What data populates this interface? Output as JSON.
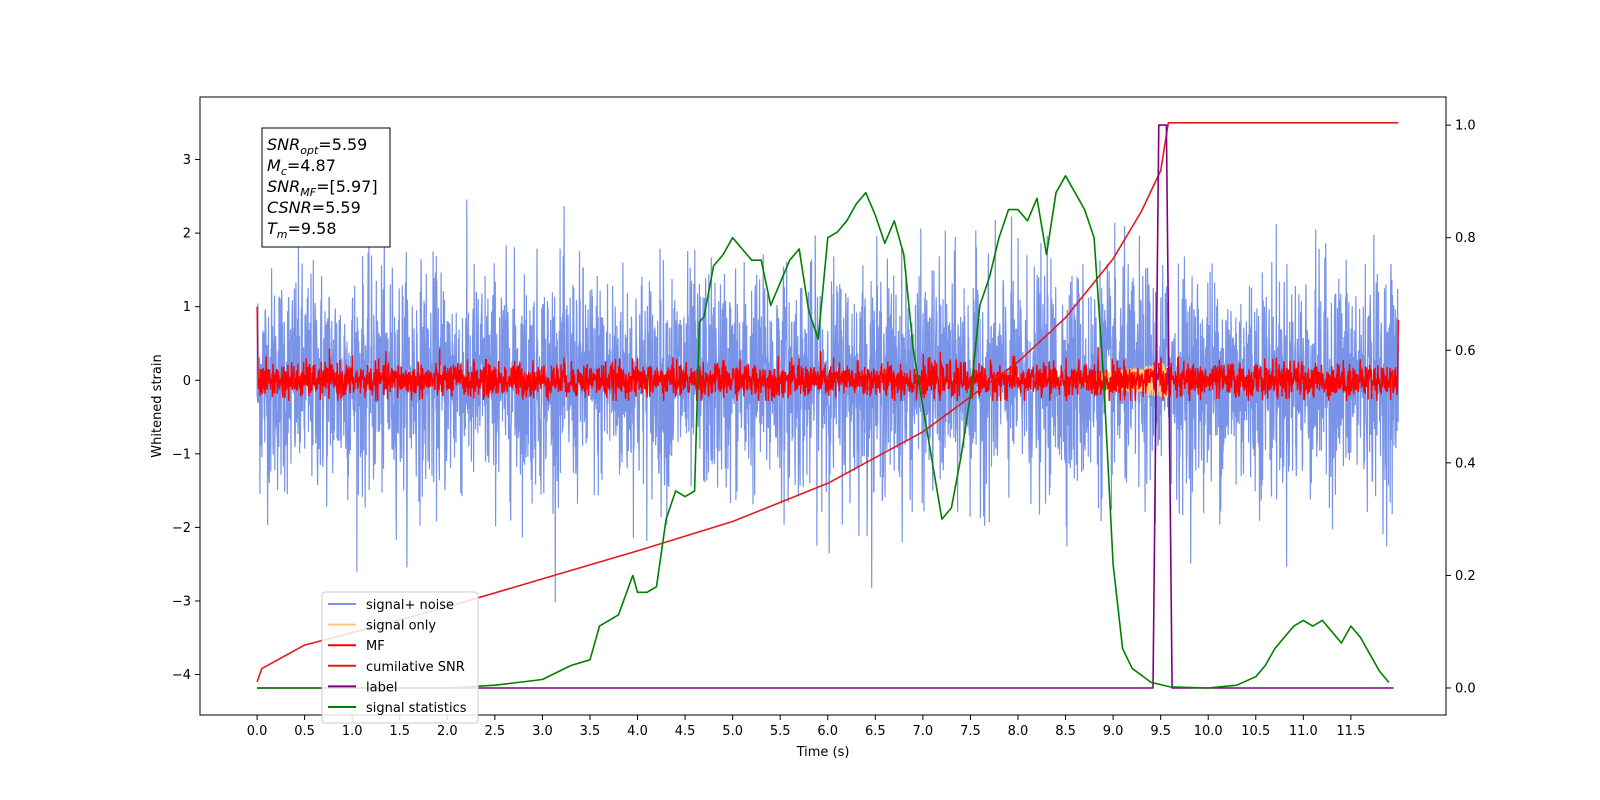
{
  "chart_data": {
    "type": "line",
    "xlabel": "Time (s)",
    "ylabel": "Whitened strain",
    "xlim": [
      -0.6,
      12.5
    ],
    "ylim": [
      -4.55,
      3.85
    ],
    "y2lim": [
      -0.048,
      1.05
    ],
    "x_ticks": [
      "0.0",
      "0.5",
      "1.0",
      "1.5",
      "2.0",
      "2.5",
      "3.0",
      "3.5",
      "4.0",
      "4.5",
      "5.0",
      "5.5",
      "6.0",
      "6.5",
      "7.0",
      "7.5",
      "8.0",
      "8.5",
      "9.0",
      "9.5",
      "10.0",
      "10.5",
      "11.0",
      "11.5"
    ],
    "y_ticks": [
      "3",
      "2",
      "1",
      "0",
      "−1",
      "−2",
      "−3",
      "−4"
    ],
    "y2_ticks": [
      "1.0",
      "0.8",
      "0.6",
      "0.4",
      "0.2",
      "0.0"
    ],
    "annotation": [
      {
        "base": "SNR",
        "sub": "opt",
        "value": "=5.59"
      },
      {
        "base": "M",
        "sub": "c",
        "value": "=4.87"
      },
      {
        "base": "SNR",
        "sub": "MF",
        "value": "=[5.97]"
      },
      {
        "base": "CSNR",
        "sub": "",
        "value": "=5.59"
      },
      {
        "base": "T",
        "sub": "m",
        "value": "=9.58"
      }
    ],
    "legend": {
      "placement": "lower-left",
      "entries": [
        {
          "label": "signal+ noise",
          "color": "#7893e8"
        },
        {
          "label": "signal only",
          "color": "#ffc77a"
        },
        {
          "label": "MF",
          "color": "#ff0000"
        },
        {
          "label": "cumilative SNR",
          "color": "#e31a1a"
        },
        {
          "label": "label",
          "color": "#800080"
        },
        {
          "label": "signal statistics",
          "color": "#008000"
        }
      ]
    },
    "series": [
      {
        "name": "signal+ noise",
        "axis": "left",
        "color": "#7893e8",
        "x_range": [
          0,
          12
        ],
        "mean": 0,
        "std": 0.75
      },
      {
        "name": "MF",
        "axis": "left",
        "color": "#ff0000",
        "x_range": [
          0,
          12
        ],
        "mean": 0,
        "std": 0.12,
        "edge_values": {
          "start": 1.0,
          "end": 0.82
        }
      },
      {
        "name": "cumilative SNR",
        "axis": "left",
        "color": "#e31a1a",
        "x": [
          0.0,
          0.05,
          0.5,
          1.0,
          2.0,
          3.0,
          4.0,
          5.0,
          6.0,
          7.0,
          8.0,
          8.5,
          9.0,
          9.3,
          9.5,
          9.58,
          12.0
        ],
        "y": [
          -4.1,
          -3.92,
          -3.6,
          -3.43,
          -3.08,
          -2.7,
          -2.32,
          -1.92,
          -1.4,
          -0.7,
          0.25,
          0.85,
          1.65,
          2.3,
          2.85,
          3.5,
          3.5
        ]
      },
      {
        "name": "label",
        "axis": "right",
        "color": "#800080",
        "x": [
          0.0,
          9.42,
          9.48,
          9.56,
          9.62,
          11.95
        ],
        "y": [
          0.0,
          0.0,
          1.0,
          1.0,
          0.0,
          0.0
        ]
      },
      {
        "name": "signal statistics",
        "axis": "right",
        "color": "#008000",
        "x": [
          0.0,
          2.0,
          2.5,
          3.0,
          3.3,
          3.5,
          3.6,
          3.8,
          3.95,
          4.0,
          4.1,
          4.2,
          4.3,
          4.4,
          4.5,
          4.6,
          4.65,
          4.7,
          4.8,
          4.9,
          5.0,
          5.1,
          5.2,
          5.3,
          5.4,
          5.5,
          5.6,
          5.7,
          5.8,
          5.9,
          6.0,
          6.1,
          6.2,
          6.3,
          6.4,
          6.5,
          6.6,
          6.7,
          6.8,
          6.9,
          7.0,
          7.1,
          7.2,
          7.3,
          7.4,
          7.5,
          7.6,
          7.7,
          7.8,
          7.9,
          8.0,
          8.1,
          8.2,
          8.3,
          8.4,
          8.5,
          8.6,
          8.7,
          8.8,
          8.9,
          9.0,
          9.1,
          9.2,
          9.4,
          9.6,
          10.0,
          10.3,
          10.5,
          10.6,
          10.7,
          10.8,
          10.9,
          11.0,
          11.1,
          11.2,
          11.3,
          11.4,
          11.5,
          11.6,
          11.7,
          11.8,
          11.9
        ],
        "y": [
          0.0,
          0.0,
          0.005,
          0.015,
          0.04,
          0.05,
          0.11,
          0.13,
          0.2,
          0.17,
          0.17,
          0.18,
          0.3,
          0.35,
          0.34,
          0.35,
          0.65,
          0.66,
          0.75,
          0.77,
          0.8,
          0.78,
          0.76,
          0.76,
          0.68,
          0.72,
          0.76,
          0.78,
          0.67,
          0.62,
          0.8,
          0.81,
          0.83,
          0.86,
          0.88,
          0.84,
          0.79,
          0.83,
          0.77,
          0.6,
          0.5,
          0.4,
          0.3,
          0.32,
          0.41,
          0.52,
          0.68,
          0.73,
          0.8,
          0.85,
          0.85,
          0.83,
          0.87,
          0.77,
          0.88,
          0.91,
          0.88,
          0.85,
          0.8,
          0.55,
          0.22,
          0.07,
          0.035,
          0.01,
          0.002,
          0.0,
          0.005,
          0.02,
          0.04,
          0.07,
          0.09,
          0.11,
          0.12,
          0.11,
          0.12,
          0.1,
          0.08,
          0.11,
          0.09,
          0.06,
          0.03,
          0.01
        ]
      },
      {
        "name": "signal only",
        "axis": "left",
        "color": "#ffc77a",
        "x_range": [
          8.6,
          9.6
        ],
        "note": "faint chirp hidden under MF trace"
      }
    ]
  }
}
